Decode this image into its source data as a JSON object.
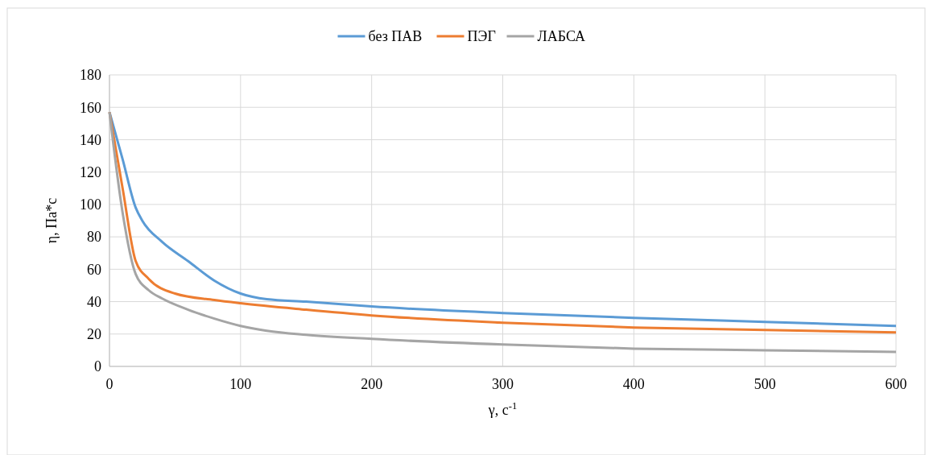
{
  "chart_data": {
    "type": "line",
    "xlabel": "γ, с$^{-1}$",
    "ylabel": "η, Па*с",
    "legend": "top",
    "grid": true,
    "line_style": "solid",
    "marker": "none",
    "xlim": [
      0,
      600
    ],
    "xticks": [
      0,
      100,
      200,
      300,
      400,
      500,
      600
    ],
    "ylim": [
      0,
      180
    ],
    "yticks": [
      0,
      20,
      40,
      60,
      80,
      100,
      120,
      140,
      160,
      180
    ],
    "series": [
      {
        "name": "без ПАВ",
        "color": "#5b9bd5",
        "x": [
          0,
          10,
          20,
          25,
          40,
          60,
          80,
          100,
          120,
          150,
          200,
          300,
          400,
          500,
          600
        ],
        "values": [
          157,
          128,
          98,
          90,
          77,
          65,
          53,
          45,
          41.5,
          40,
          37,
          33,
          30,
          27.5,
          25
        ]
      },
      {
        "name": "ПЭГ",
        "color": "#ed7d31",
        "x": [
          0,
          10,
          20,
          30,
          50,
          80,
          100,
          150,
          200,
          300,
          400,
          500,
          600
        ],
        "values": [
          157,
          110,
          65,
          54,
          45,
          41,
          39,
          35,
          31.5,
          27,
          24,
          22.5,
          21
        ]
      },
      {
        "name": "ЛАБСА",
        "color": "#a5a5a5",
        "x": [
          0,
          10,
          20,
          30,
          40,
          60,
          80,
          100,
          120,
          150,
          200,
          300,
          400,
          500,
          600
        ],
        "values": [
          157,
          95,
          57,
          47,
          42,
          35,
          29.5,
          25,
          22,
          19.5,
          17,
          13.5,
          11,
          10,
          9
        ]
      }
    ]
  }
}
